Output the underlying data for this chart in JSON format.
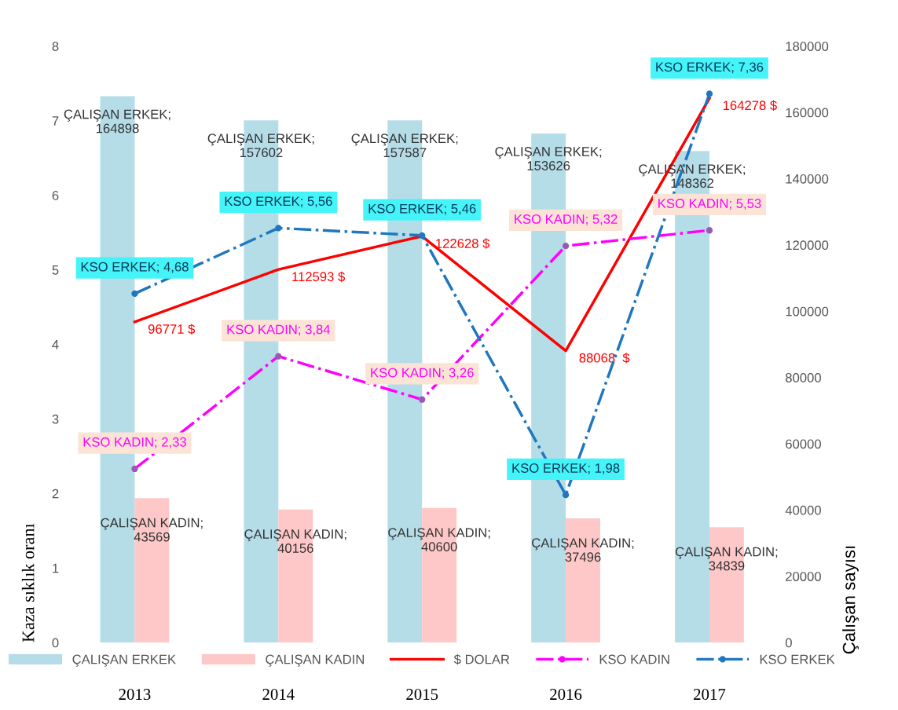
{
  "chart_data": {
    "type": "bar",
    "ylabel": "Kaza sıklık oranı",
    "y2label": "Çalışan sayısı",
    "categories": [
      "2013",
      "2014",
      "2015",
      "2016",
      "2017"
    ],
    "ylim": [
      0,
      8
    ],
    "yticks": [
      0,
      1,
      2,
      3,
      4,
      5,
      6,
      7,
      8
    ],
    "y2lim": [
      0,
      180000
    ],
    "y2ticks": [
      0,
      20000,
      40000,
      60000,
      80000,
      100000,
      120000,
      140000,
      160000,
      180000
    ],
    "grid": false,
    "legend": "bottom",
    "series": [
      {
        "name": "ÇALIŞAN ERKEK",
        "axis": "y2",
        "color": "#b4dde8",
        "values": [
          164898,
          157602,
          157587,
          153626,
          148362
        ],
        "value_labels": [
          "ÇALIŞAN ERKEK; 164898",
          "ÇALIŞAN ERKEK; 157602",
          "ÇALIŞAN ERKEK; 157587",
          "ÇALIŞAN ERKEK; 153626",
          "ÇALIŞAN ERKEK; 148362"
        ]
      },
      {
        "name": "ÇALIŞAN KADIN",
        "axis": "y2",
        "color": "#ffc8c8",
        "values": [
          43569,
          40156,
          40600,
          37496,
          34839
        ],
        "value_labels": [
          "ÇALIŞAN KADIN; 43569",
          "ÇALIŞAN KADIN; 40156",
          "ÇALIŞAN KADIN; 40600",
          "ÇALIŞAN KADIN; 37496",
          "ÇALIŞAN KADIN; 34839"
        ]
      },
      {
        "name": "$ DOLAR",
        "type": "line",
        "axis": "y2",
        "color": "#ff0000",
        "line_style": "solid",
        "marker": "none",
        "values": [
          96771,
          112593,
          122628,
          88068,
          164278
        ],
        "value_labels": [
          "96771 $",
          "112593 $",
          "122628 $",
          "88068  $",
          "164278 $"
        ]
      },
      {
        "name": "KSO KADIN",
        "type": "line",
        "axis": "y",
        "color": "#ff00ff",
        "line_style": "dashdot",
        "marker": "circle",
        "values": [
          2.33,
          3.84,
          3.26,
          5.32,
          5.53
        ],
        "value_labels": [
          "KSO KADIN; 2,33",
          "KSO KADIN; 3,84",
          "KSO KADIN; 3,26",
          "KSO KADIN; 5,32",
          "KSO KADIN; 5,53"
        ]
      },
      {
        "name": "KSO ERKEK",
        "type": "line",
        "axis": "y",
        "color": "#1f77c0",
        "line_style": "dashdot",
        "marker": "circle",
        "values": [
          4.68,
          5.56,
          5.46,
          1.98,
          7.36
        ],
        "value_labels": [
          "KSO ERKEK; 4,68",
          "KSO ERKEK; 5,56",
          "KSO ERKEK; 5,46",
          "KSO ERKEK; 1,98",
          "KSO ERKEK; 7,36"
        ]
      }
    ]
  }
}
